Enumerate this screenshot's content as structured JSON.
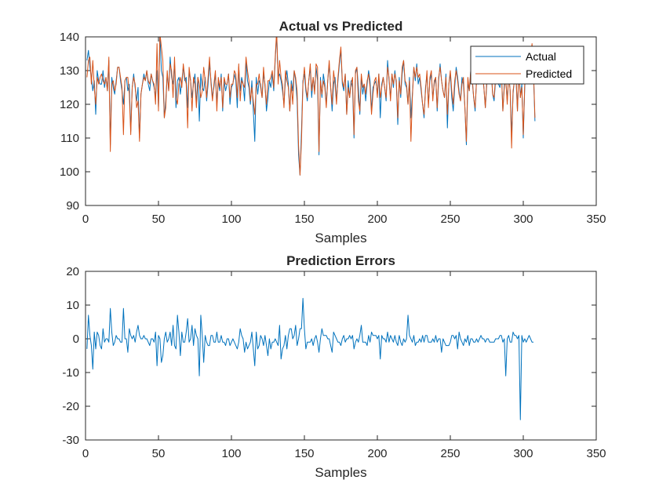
{
  "chart_data": [
    {
      "type": "line",
      "title": "Actual vs Predicted",
      "xlabel": "Samples",
      "ylabel": "",
      "xlim": [
        0,
        350
      ],
      "ylim": [
        90,
        140
      ],
      "xticks": [
        0,
        50,
        100,
        150,
        200,
        250,
        300,
        350
      ],
      "yticks": [
        90,
        100,
        110,
        120,
        130,
        140
      ],
      "grid": false,
      "legend": "top-right",
      "series": [
        {
          "name": "Actual",
          "color": "#0072BD",
          "x_start": 1,
          "values": [
            133,
            136,
            131,
            128,
            124,
            127,
            117,
            130,
            127,
            126,
            126,
            130,
            125,
            128,
            124,
            133,
            108,
            128,
            125,
            123,
            127,
            131,
            131,
            127,
            124,
            120,
            127,
            128,
            124,
            126,
            112,
            125,
            129,
            125,
            121,
            125,
            110,
            123,
            126,
            129,
            127,
            130,
            126,
            124,
            129,
            127,
            125,
            122,
            130,
            119,
            141,
            130,
            128,
            116,
            121,
            129,
            124,
            134,
            128,
            126,
            132,
            119,
            127,
            128,
            123,
            127,
            131,
            127,
            128,
            119,
            130,
            127,
            122,
            126,
            129,
            120,
            128,
            115,
            129,
            125,
            124,
            128,
            121,
            126,
            132,
            127,
            122,
            125,
            129,
            120,
            127,
            124,
            129,
            118,
            127,
            124,
            126,
            129,
            120,
            125,
            126,
            129,
            127,
            119,
            131,
            124,
            128,
            126,
            121,
            133,
            127,
            125,
            120,
            127,
            118,
            109,
            128,
            123,
            127,
            126,
            122,
            129,
            126,
            118,
            122,
            127,
            125,
            129,
            124,
            133,
            141,
            128,
            129,
            127,
            124,
            120,
            127,
            130,
            126,
            118,
            127,
            124,
            130,
            127,
            121,
            105,
            99,
            112,
            127,
            129,
            124,
            121,
            127,
            131,
            122,
            128,
            124,
            131,
            127,
            105,
            128,
            122,
            129,
            126,
            120,
            127,
            132,
            125,
            118,
            126,
            128,
            121,
            127,
            132,
            136,
            126,
            124,
            129,
            117,
            127,
            122,
            127,
            125,
            110,
            129,
            131,
            125,
            117,
            128,
            123,
            126,
            121,
            126,
            130,
            127,
            118,
            125,
            126,
            127,
            123,
            129,
            116,
            126,
            128,
            125,
            121,
            133,
            127,
            122,
            129,
            125,
            130,
            126,
            114,
            128,
            122,
            129,
            133,
            126,
            125,
            120,
            128,
            116,
            123,
            131,
            127,
            132,
            126,
            128,
            124,
            120,
            116,
            125,
            129,
            120,
            127,
            129,
            122,
            126,
            128,
            118,
            127,
            132,
            127,
            124,
            122,
            129,
            113,
            126,
            129,
            122,
            118,
            125,
            131,
            128,
            124,
            121,
            128,
            126,
            119,
            108,
            126,
            124,
            130,
            127,
            122,
            118,
            128,
            126,
            131,
            127,
            129,
            125,
            119,
            126,
            132,
            128,
            130,
            123,
            121,
            127,
            129,
            126,
            125,
            130,
            118,
            126,
            127,
            121,
            129,
            124,
            111,
            123,
            128,
            128,
            118,
            131,
            122,
            126,
            110,
            125,
            133,
            127,
            130,
            135,
            137,
            129,
            115
          ]
        },
        {
          "name": "Predicted",
          "color": "#D95319",
          "x_start": 1,
          "values": [
            128,
            133,
            134,
            126,
            133,
            125,
            120,
            128,
            126,
            128,
            129,
            127,
            126,
            128,
            124,
            134,
            106,
            126,
            127,
            124,
            126,
            131,
            131,
            128,
            125,
            111,
            127,
            128,
            128,
            123,
            111,
            125,
            128,
            126,
            119,
            121,
            109,
            123,
            126,
            128,
            127,
            130,
            127,
            126,
            129,
            127,
            126,
            120,
            138,
            118,
            141,
            137,
            133,
            116,
            119,
            130,
            124,
            132,
            130,
            122,
            134,
            122,
            120,
            126,
            128,
            125,
            132,
            128,
            126,
            113,
            131,
            127,
            118,
            128,
            126,
            119,
            128,
            126,
            122,
            124,
            131,
            127,
            122,
            128,
            134,
            126,
            121,
            126,
            130,
            118,
            128,
            125,
            128,
            119,
            128,
            126,
            126,
            129,
            122,
            126,
            126,
            130,
            129,
            122,
            132,
            121,
            127,
            126,
            125,
            134,
            130,
            127,
            121,
            125,
            121,
            117,
            126,
            126,
            129,
            125,
            122,
            131,
            125,
            120,
            127,
            127,
            128,
            130,
            125,
            134,
            142,
            126,
            133,
            128,
            126,
            119,
            130,
            127,
            125,
            118,
            126,
            120,
            130,
            128,
            124,
            108,
            99,
            109,
            126,
            131,
            125,
            122,
            127,
            132,
            124,
            128,
            123,
            132,
            131,
            106,
            127,
            123,
            127,
            125,
            119,
            127,
            133,
            125,
            120,
            130,
            126,
            120,
            128,
            133,
            137,
            127,
            125,
            129,
            117,
            125,
            122,
            126,
            128,
            111,
            130,
            131,
            121,
            118,
            129,
            125,
            126,
            123,
            127,
            129,
            125,
            117,
            123,
            127,
            128,
            122,
            129,
            122,
            125,
            128,
            125,
            122,
            131,
            128,
            121,
            129,
            126,
            129,
            127,
            116,
            127,
            123,
            131,
            133,
            127,
            126,
            120,
            127,
            109,
            122,
            131,
            128,
            131,
            128,
            129,
            125,
            120,
            117,
            124,
            130,
            119,
            128,
            130,
            121,
            127,
            128,
            119,
            128,
            131,
            127,
            124,
            122,
            128,
            117,
            126,
            130,
            124,
            120,
            127,
            130,
            127,
            123,
            121,
            126,
            128,
            119,
            109,
            128,
            124,
            130,
            128,
            122,
            119,
            127,
            127,
            130,
            128,
            130,
            125,
            119,
            127,
            132,
            128,
            131,
            123,
            122,
            128,
            130,
            127,
            126,
            130,
            118,
            125,
            128,
            120,
            129,
            124,
            107,
            124,
            127,
            129,
            118,
            130,
            122,
            125,
            111,
            126,
            133,
            128,
            130,
            134,
            138,
            130,
            116
          ]
        }
      ]
    },
    {
      "type": "line",
      "title": "Prediction Errors",
      "xlabel": "Samples",
      "ylabel": "",
      "xlim": [
        0,
        350
      ],
      "ylim": [
        -30,
        20
      ],
      "xticks": [
        0,
        50,
        100,
        150,
        200,
        250,
        300,
        350
      ],
      "yticks": [
        -30,
        -20,
        -10,
        0,
        10,
        20
      ],
      "grid": false,
      "series": [
        {
          "color": "#0072BD",
          "x_start": 1,
          "values": [
            -3,
            7,
            1,
            -2,
            -9,
            2,
            -3,
            2,
            1,
            -2,
            -3,
            3,
            -1,
            0,
            0,
            -1,
            9,
            2,
            -2,
            -1,
            1,
            0,
            0,
            -1,
            -1,
            9,
            0,
            0,
            -4,
            3,
            1,
            0,
            1,
            -1,
            2,
            4,
            1,
            0,
            0,
            1,
            0,
            0,
            -1,
            -2,
            0,
            0,
            -1,
            2,
            -8,
            1,
            0,
            -7,
            -5,
            0,
            2,
            -1,
            0,
            2,
            -2,
            4,
            -2,
            -3,
            7,
            2,
            -5,
            2,
            -1,
            -1,
            2,
            6,
            -1,
            0,
            4,
            -2,
            3,
            1,
            0,
            -11,
            7,
            1,
            -7,
            1,
            -1,
            -2,
            -2,
            1,
            1,
            -1,
            -1,
            2,
            -1,
            -1,
            1,
            -1,
            -1,
            -2,
            0,
            0,
            -2,
            -1,
            0,
            -1,
            -2,
            -3,
            -1,
            3,
            1,
            0,
            -4,
            -1,
            -3,
            -2,
            -1,
            2,
            -3,
            -8,
            2,
            -3,
            -2,
            1,
            0,
            -2,
            1,
            -2,
            -5,
            0,
            -3,
            -1,
            -1,
            0,
            -1,
            -2,
            4,
            -6,
            -3,
            -2,
            1,
            -3,
            1,
            3,
            3,
            0,
            1,
            4,
            -2,
            0,
            3,
            3,
            12,
            3,
            -3,
            -1,
            -1,
            -1,
            0,
            -2,
            0,
            1,
            -1,
            -4,
            0,
            3,
            1,
            1,
            1,
            0,
            0,
            -2,
            -4,
            2,
            1,
            0,
            -1,
            -1,
            -2,
            0,
            1,
            -1,
            0,
            0,
            1,
            0,
            1,
            -3,
            -1,
            0,
            -1,
            1,
            4,
            -1,
            -1,
            -1,
            -2,
            1,
            -1,
            2,
            1,
            1,
            1,
            0,
            1,
            -6,
            1,
            0,
            0,
            -1,
            2,
            -1,
            1,
            0,
            -1,
            1,
            -1,
            -2,
            1,
            -1,
            -2,
            0,
            -1,
            0,
            7,
            1,
            0,
            -1,
            1,
            -2,
            -1,
            -1,
            0,
            -1,
            1,
            -1,
            1,
            1,
            -1,
            -1,
            -1,
            0,
            -1,
            1,
            -1,
            0,
            0,
            -4,
            0,
            -1,
            -2,
            -2,
            -2,
            -1,
            1,
            1,
            0,
            1,
            -3,
            2,
            0,
            -1,
            -2,
            0,
            -1,
            1,
            -2,
            0,
            0,
            -1,
            -1,
            0,
            -1,
            0,
            1,
            0,
            0,
            -1,
            0,
            0,
            -1,
            -1,
            -1,
            -1,
            0,
            0,
            0,
            1,
            1,
            -1,
            0,
            -11,
            0,
            1,
            -1,
            -1,
            2,
            1,
            1,
            0,
            1,
            -24,
            1,
            -1,
            0,
            -1,
            0,
            1,
            0,
            -1,
            -1
          ]
        }
      ]
    }
  ]
}
